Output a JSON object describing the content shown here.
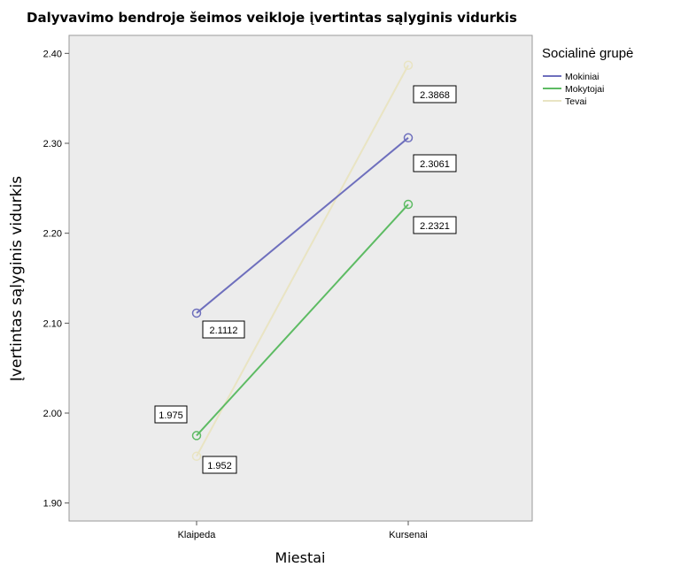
{
  "chart_data": {
    "type": "line",
    "title": "Dalyvavimo bendroje šeimos veikloje įvertintas sąlyginis vidurkis",
    "xlabel": "Miestai",
    "ylabel": "Įvertintas sąlyginis vidurkis",
    "categories": [
      "Klaipeda",
      "Kursenai"
    ],
    "ylim": [
      1.88,
      2.42
    ],
    "yticks": [
      1.9,
      2.0,
      2.1,
      2.2,
      2.3,
      2.4
    ],
    "ytick_labels": [
      "1.90",
      "2.00",
      "2.10",
      "2.20",
      "2.30",
      "2.40"
    ],
    "legend_title": "Socialinė grupė",
    "legend_position": "right",
    "grid": false,
    "plot_background": "#ececec",
    "series": [
      {
        "name": "Mokiniai",
        "values": [
          2.1112,
          2.3061
        ],
        "labels": [
          "2.1112",
          "2.3061"
        ],
        "color": "#6e6fbd"
      },
      {
        "name": "Mokytojai",
        "values": [
          1.975,
          2.2321
        ],
        "labels": [
          "1.975",
          "2.2321"
        ],
        "color": "#5dbb63"
      },
      {
        "name": "Tevai",
        "values": [
          1.952,
          2.3868
        ],
        "labels": [
          "1.952",
          "2.3868"
        ],
        "color": "#e9e4c3"
      }
    ]
  }
}
